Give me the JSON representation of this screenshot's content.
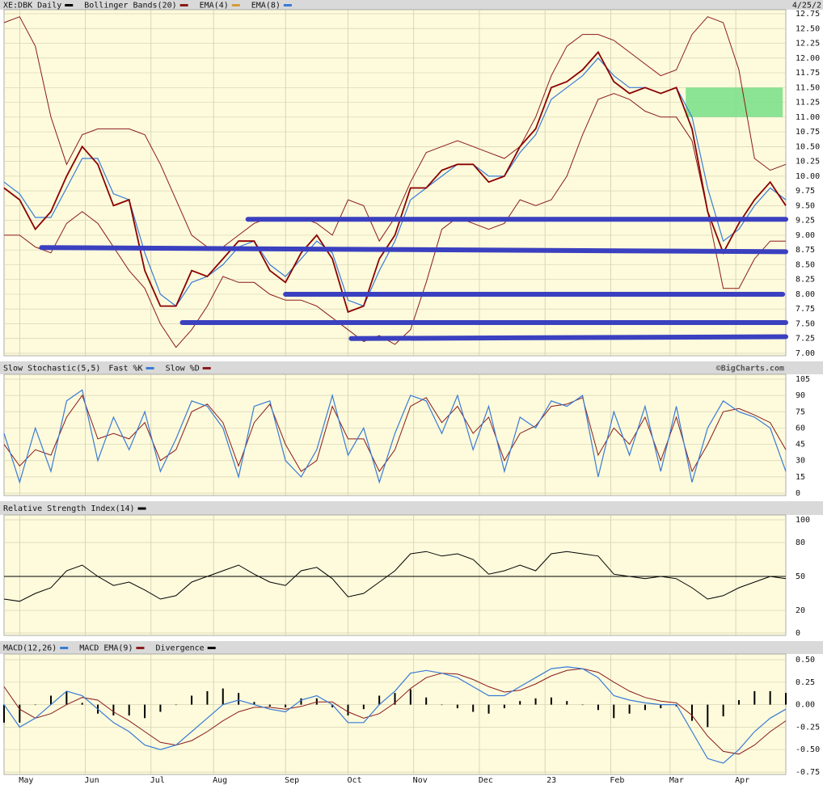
{
  "chart_data": [
    {
      "type": "line",
      "legend": [
        {
          "name": "XE:DBK Daily",
          "color": "#000000"
        },
        {
          "name": "Bollinger Bands(20)",
          "color": "#8b1a1a"
        },
        {
          "name": "EMA(4)",
          "color": "#d49a3a"
        },
        {
          "name": "EMA(8)",
          "color": "#3a7bd5"
        }
      ],
      "date_label": "4/25/2",
      "x": [
        0,
        5,
        10,
        15,
        20,
        25,
        30,
        35,
        40,
        45,
        50,
        55,
        60,
        65,
        70,
        75,
        80,
        85,
        90,
        95,
        100,
        105,
        110,
        115,
        120,
        125,
        130,
        135,
        140,
        145,
        150,
        155,
        160,
        165,
        170,
        175,
        180,
        185,
        190,
        195,
        200,
        205,
        210,
        215,
        220,
        225,
        230,
        235,
        240,
        245,
        250
      ],
      "series": [
        {
          "color": "#8b1a1a",
          "width": 1,
          "values": [
            12.6,
            12.7,
            12.2,
            11.0,
            10.2,
            10.7,
            10.8,
            10.8,
            10.8,
            10.7,
            10.2,
            9.6,
            9.0,
            8.8,
            8.8,
            9.0,
            9.2,
            9.3,
            9.3,
            9.3,
            9.2,
            9.0,
            9.6,
            9.5,
            8.9,
            9.3,
            9.9,
            10.4,
            10.5,
            10.6,
            10.5,
            10.4,
            10.3,
            10.5,
            11.0,
            11.7,
            12.2,
            12.4,
            12.4,
            12.3,
            12.1,
            11.9,
            11.7,
            11.8,
            12.4,
            12.7,
            12.6,
            11.8,
            10.3,
            10.1,
            10.2
          ]
        },
        {
          "color": "#8b1a1a",
          "width": 1,
          "values": [
            9.0,
            9.0,
            8.8,
            8.7,
            9.2,
            9.4,
            9.2,
            8.8,
            8.4,
            8.1,
            7.5,
            7.1,
            7.4,
            7.8,
            8.3,
            8.2,
            8.2,
            8.0,
            7.9,
            7.9,
            7.8,
            7.6,
            7.4,
            7.2,
            7.3,
            7.15,
            7.4,
            8.2,
            9.1,
            9.3,
            9.2,
            9.1,
            9.2,
            9.6,
            9.5,
            9.6,
            10.0,
            10.7,
            11.3,
            11.4,
            11.3,
            11.1,
            11.0,
            11.0,
            10.6,
            9.4,
            8.1,
            8.1,
            8.6,
            8.9,
            8.9
          ]
        },
        {
          "color": "#3a7bd5",
          "width": 1.2,
          "values": [
            9.9,
            9.7,
            9.3,
            9.3,
            9.8,
            10.3,
            10.3,
            9.7,
            9.6,
            8.7,
            8.0,
            7.8,
            8.2,
            8.3,
            8.5,
            8.8,
            8.9,
            8.5,
            8.3,
            8.6,
            8.9,
            8.7,
            7.9,
            7.8,
            8.4,
            8.9,
            9.6,
            9.8,
            10.0,
            10.2,
            10.2,
            10.0,
            10.0,
            10.4,
            10.7,
            11.3,
            11.5,
            11.7,
            12.0,
            11.7,
            11.5,
            11.5,
            11.4,
            11.5,
            11.0,
            9.8,
            8.9,
            9.1,
            9.5,
            9.8,
            9.6
          ]
        },
        {
          "color": "#8b0000",
          "width": 1.8,
          "values": [
            9.8,
            9.6,
            9.1,
            9.4,
            10.0,
            10.5,
            10.2,
            9.5,
            9.6,
            8.4,
            7.8,
            7.8,
            8.4,
            8.3,
            8.6,
            8.9,
            8.9,
            8.4,
            8.2,
            8.7,
            9.0,
            8.6,
            7.7,
            7.8,
            8.6,
            9.0,
            9.8,
            9.8,
            10.1,
            10.2,
            10.2,
            9.9,
            10.0,
            10.5,
            10.8,
            11.5,
            11.6,
            11.8,
            12.1,
            11.6,
            11.4,
            11.5,
            11.4,
            11.5,
            10.8,
            9.4,
            8.7,
            9.2,
            9.6,
            9.9,
            9.5
          ]
        }
      ],
      "zone": {
        "x": [
          218,
          249
        ],
        "y": [
          11.0,
          11.5
        ],
        "color": "#7ee08c"
      },
      "support_lines": [
        {
          "from": [
            78,
            9.27
          ],
          "to": [
            250,
            9.27
          ]
        },
        {
          "from": [
            12,
            8.79
          ],
          "to": [
            250,
            8.72
          ]
        },
        {
          "from": [
            90,
            8.0
          ],
          "to": [
            249,
            8.0
          ]
        },
        {
          "from": [
            57,
            7.52
          ],
          "to": [
            250,
            7.52
          ]
        },
        {
          "from": [
            111,
            7.25
          ],
          "to": [
            250,
            7.28
          ]
        }
      ],
      "support_color": "#3b40c0",
      "ylim": [
        7.0,
        12.75
      ],
      "yticks": [
        12.75,
        {
          "value": 12.5,
          "label": "12.50"
        },
        12.25,
        {
          "value": 12,
          "label": "12.00"
        },
        11.75,
        {
          "value": 11.5,
          "label": "11.50"
        },
        11.25,
        {
          "value": 11,
          "label": "11.00"
        },
        10.75,
        {
          "value": 10.5,
          "label": "10.50"
        },
        10.25,
        {
          "value": 10,
          "label": "10.00"
        },
        9.75,
        {
          "value": 9.5,
          "label": "9.50"
        },
        9.25,
        {
          "value": 9,
          "label": "9.00"
        },
        8.75,
        {
          "value": 8.5,
          "label": "8.50"
        },
        8.25,
        {
          "value": 8,
          "label": "8.00"
        },
        7.75,
        {
          "value": 7.5,
          "label": "7.50"
        },
        7.25,
        {
          "value": 7,
          "label": "7.00"
        }
      ],
      "grid": true
    },
    {
      "type": "line",
      "title": "Slow Stochastic(5,5)",
      "legend": [
        {
          "name": "Fast %K",
          "color": "#3a7bd5"
        },
        {
          "name": "Slow %D",
          "color": "#8b1a1a"
        }
      ],
      "credit": "©BigCharts.com",
      "x": [
        0,
        5,
        10,
        15,
        20,
        25,
        30,
        35,
        40,
        45,
        50,
        55,
        60,
        65,
        70,
        75,
        80,
        85,
        90,
        95,
        100,
        105,
        110,
        115,
        120,
        125,
        130,
        135,
        140,
        145,
        150,
        155,
        160,
        165,
        170,
        175,
        180,
        185,
        190,
        195,
        200,
        205,
        210,
        215,
        220,
        225,
        230,
        235,
        240,
        245,
        250
      ],
      "series": [
        {
          "color": "#8b1a1a",
          "width": 1,
          "values": [
            45,
            25,
            40,
            35,
            70,
            90,
            50,
            55,
            50,
            65,
            30,
            40,
            75,
            82,
            65,
            25,
            65,
            82,
            45,
            20,
            30,
            80,
            50,
            50,
            20,
            40,
            80,
            88,
            65,
            80,
            55,
            70,
            30,
            55,
            62,
            80,
            82,
            88,
            35,
            60,
            45,
            70,
            30,
            70,
            20,
            45,
            75,
            78,
            72,
            65,
            40
          ]
        },
        {
          "color": "#3a7bd5",
          "width": 1.2,
          "values": [
            55,
            10,
            60,
            20,
            85,
            95,
            30,
            70,
            40,
            75,
            20,
            50,
            85,
            80,
            60,
            15,
            80,
            85,
            30,
            15,
            40,
            90,
            35,
            60,
            10,
            55,
            90,
            85,
            55,
            90,
            40,
            80,
            20,
            70,
            60,
            85,
            80,
            90,
            15,
            75,
            35,
            80,
            20,
            80,
            10,
            60,
            85,
            75,
            70,
            60,
            20
          ]
        }
      ],
      "ylim": [
        0,
        105
      ],
      "yticks": [
        105,
        90,
        75,
        60,
        45,
        30,
        15,
        0
      ],
      "grid": true
    },
    {
      "type": "line",
      "legend": [
        {
          "name": "Relative Strength Index(14)",
          "color": "#000000"
        }
      ],
      "x": [
        0,
        5,
        10,
        15,
        20,
        25,
        30,
        35,
        40,
        45,
        50,
        55,
        60,
        65,
        70,
        75,
        80,
        85,
        90,
        95,
        100,
        105,
        110,
        115,
        120,
        125,
        130,
        135,
        140,
        145,
        150,
        155,
        160,
        165,
        170,
        175,
        180,
        185,
        190,
        195,
        200,
        205,
        210,
        215,
        220,
        225,
        230,
        235,
        240,
        245,
        250
      ],
      "series": [
        {
          "color": "#000000",
          "width": 1,
          "values": [
            30,
            28,
            35,
            40,
            55,
            60,
            50,
            42,
            45,
            38,
            30,
            33,
            45,
            50,
            55,
            60,
            52,
            45,
            42,
            55,
            58,
            48,
            32,
            35,
            45,
            55,
            70,
            72,
            68,
            70,
            65,
            52,
            55,
            60,
            55,
            70,
            72,
            70,
            68,
            52,
            50,
            48,
            50,
            48,
            40,
            30,
            33,
            40,
            45,
            50,
            48
          ]
        }
      ],
      "ref_line": 50,
      "ylim": [
        0,
        100
      ],
      "yticks": [
        100,
        80,
        50,
        20,
        0
      ],
      "grid": true
    },
    {
      "type": "line",
      "legend": [
        {
          "name": "MACD(12,26)",
          "color": "#3a7bd5"
        },
        {
          "name": "MACD EMA(9)",
          "color": "#8b1a1a"
        },
        {
          "name": "Divergence",
          "color": "#000000"
        }
      ],
      "x": [
        0,
        5,
        10,
        15,
        20,
        25,
        30,
        35,
        40,
        45,
        50,
        55,
        60,
        65,
        70,
        75,
        80,
        85,
        90,
        95,
        100,
        105,
        110,
        115,
        120,
        125,
        130,
        135,
        140,
        145,
        150,
        155,
        160,
        165,
        170,
        175,
        180,
        185,
        190,
        195,
        200,
        205,
        210,
        215,
        220,
        225,
        230,
        235,
        240,
        245,
        250
      ],
      "series": [
        {
          "color": "#000000",
          "style": "bar",
          "values": [
            -0.2,
            -0.2,
            0.0,
            0.1,
            0.15,
            0.02,
            -0.1,
            -0.12,
            -0.12,
            -0.15,
            -0.08,
            0.0,
            0.1,
            0.15,
            0.18,
            0.13,
            0.03,
            -0.02,
            -0.03,
            0.07,
            0.07,
            -0.03,
            -0.12,
            -0.05,
            0.1,
            0.13,
            0.17,
            0.08,
            0.0,
            -0.04,
            -0.08,
            -0.1,
            -0.04,
            0.04,
            0.07,
            0.08,
            0.04,
            0.0,
            -0.06,
            -0.15,
            -0.1,
            -0.06,
            -0.04,
            -0.02,
            -0.18,
            -0.25,
            -0.13,
            0.05,
            0.15,
            0.15,
            0.13
          ]
        },
        {
          "color": "#8b1a1a",
          "width": 1,
          "values": [
            0.2,
            -0.05,
            -0.15,
            -0.1,
            0.0,
            0.08,
            0.05,
            -0.08,
            -0.18,
            -0.3,
            -0.42,
            -0.45,
            -0.4,
            -0.3,
            -0.18,
            -0.08,
            -0.03,
            -0.03,
            -0.05,
            -0.02,
            0.03,
            0.03,
            -0.08,
            -0.15,
            -0.1,
            0.02,
            0.18,
            0.3,
            0.35,
            0.34,
            0.28,
            0.2,
            0.14,
            0.16,
            0.23,
            0.32,
            0.38,
            0.4,
            0.36,
            0.25,
            0.15,
            0.08,
            0.04,
            0.02,
            -0.12,
            -0.35,
            -0.52,
            -0.55,
            -0.45,
            -0.3,
            -0.18
          ]
        },
        {
          "color": "#3a7bd5",
          "width": 1.2,
          "values": [
            0.0,
            -0.25,
            -0.15,
            0.0,
            0.15,
            0.1,
            -0.05,
            -0.2,
            -0.3,
            -0.45,
            -0.5,
            -0.45,
            -0.3,
            -0.15,
            0.0,
            0.05,
            0.0,
            -0.05,
            -0.08,
            0.05,
            0.1,
            0.0,
            -0.2,
            -0.2,
            0.0,
            0.15,
            0.35,
            0.38,
            0.35,
            0.3,
            0.2,
            0.1,
            0.1,
            0.2,
            0.3,
            0.4,
            0.42,
            0.4,
            0.3,
            0.1,
            0.05,
            0.02,
            0.0,
            0.0,
            -0.3,
            -0.6,
            -0.65,
            -0.5,
            -0.3,
            -0.15,
            -0.05
          ]
        }
      ],
      "ylim": [
        -0.75,
        0.5
      ],
      "yticks": [
        {
          "value": 0.5,
          "label": "0.50"
        },
        0.25,
        {
          "value": 0,
          "label": "0.00"
        },
        -0.25,
        {
          "value": -0.5,
          "label": "-0.50"
        },
        -0.75
      ],
      "xlim": [
        0,
        250
      ],
      "xticks": [
        {
          "value": 5,
          "label": "May"
        },
        {
          "value": 26,
          "label": "Jun"
        },
        {
          "value": 47,
          "label": "Jul"
        },
        {
          "value": 67,
          "label": "Aug"
        },
        {
          "value": 90,
          "label": "Sep"
        },
        {
          "value": 110,
          "label": "Oct"
        },
        {
          "value": 131,
          "label": "Nov"
        },
        {
          "value": 152,
          "label": "Dec"
        },
        {
          "value": 173,
          "label": "23"
        },
        {
          "value": 194,
          "label": "Feb"
        },
        {
          "value": 213,
          "label": "Mar"
        },
        {
          "value": 234,
          "label": "Apr"
        }
      ],
      "grid": true
    }
  ]
}
